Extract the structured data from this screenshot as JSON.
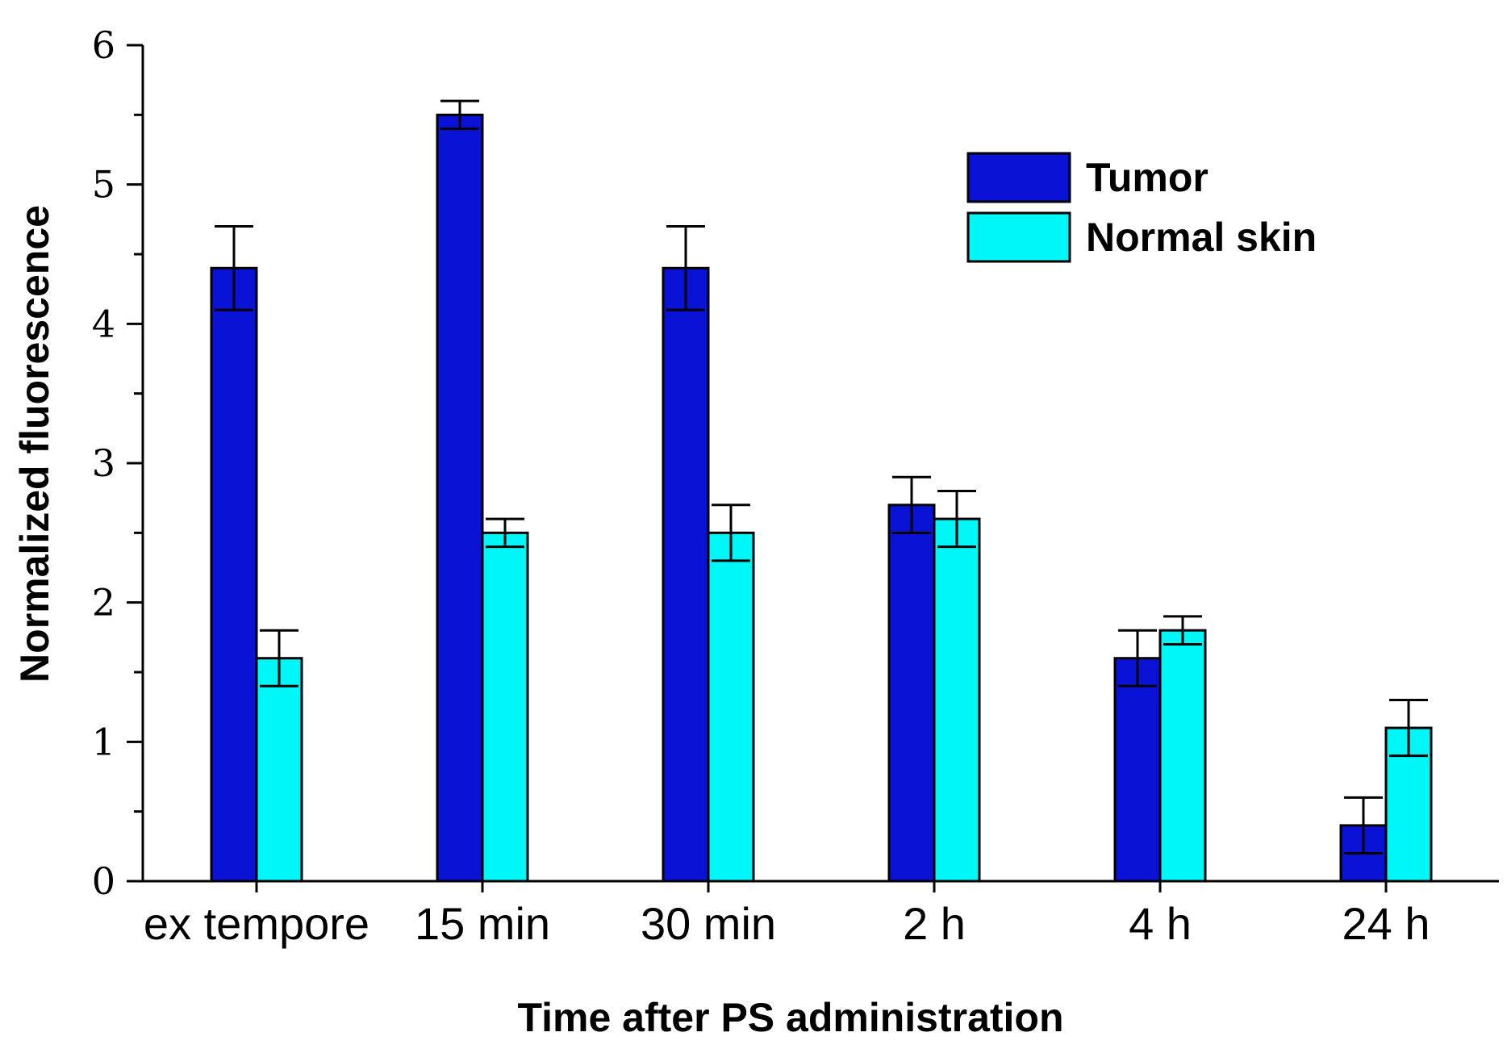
{
  "chart_data": {
    "type": "bar",
    "title": "",
    "xlabel": "Time after PS administration",
    "ylabel": "Normalized fluorescence",
    "ylim": [
      0,
      6
    ],
    "yticks": [
      "0",
      "1",
      "2",
      "3",
      "4",
      "5",
      "6"
    ],
    "categories": [
      "ex tempore",
      "15 min",
      "30 min",
      "2 h",
      "4 h",
      "24 h"
    ],
    "series": [
      {
        "name": "Tumor",
        "color": "#0a12d6",
        "values": [
          4.4,
          5.5,
          4.4,
          2.7,
          1.6,
          0.4
        ],
        "errors": [
          0.3,
          0.1,
          0.3,
          0.2,
          0.2,
          0.2
        ]
      },
      {
        "name": "Normal skin",
        "color": "#00f7f7",
        "values": [
          1.6,
          2.5,
          2.5,
          2.6,
          1.8,
          1.1
        ],
        "errors": [
          0.2,
          0.1,
          0.2,
          0.2,
          0.1,
          0.2
        ]
      }
    ],
    "grid": false,
    "legend_position": "top-right"
  }
}
